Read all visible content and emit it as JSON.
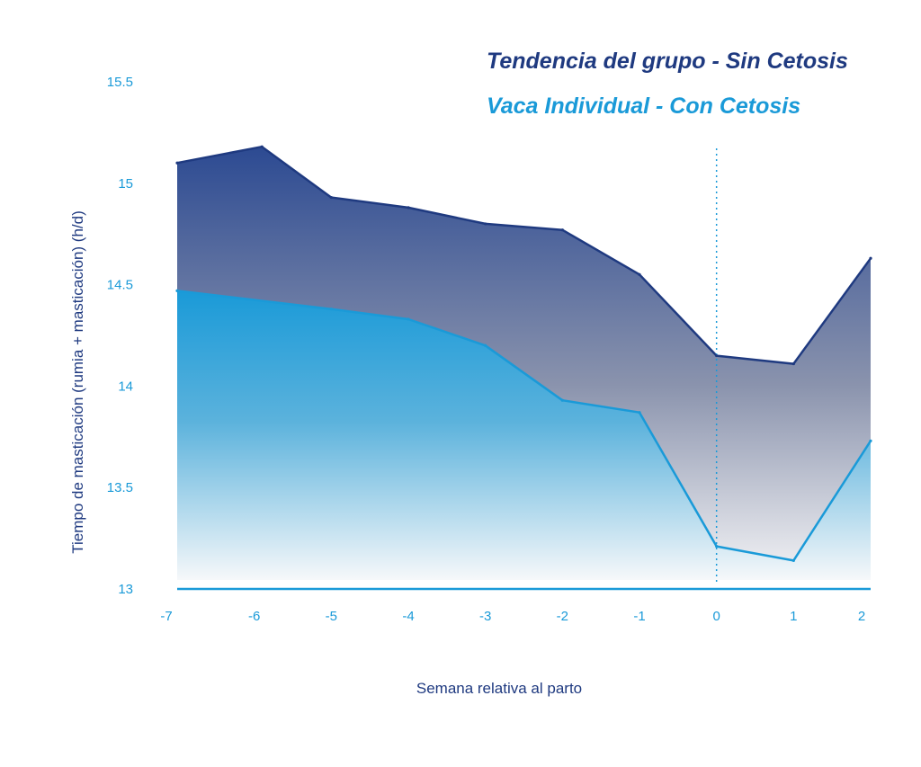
{
  "colors": {
    "group": "#1f3a80",
    "individual": "#1a9ad8",
    "axis": "#1a9ad8",
    "title_text": "#1f3a80"
  },
  "chart_data": {
    "type": "area",
    "xlabel": "Semana relativa al parto",
    "ylabel": "Tiempo de masticación (rumia + masticación) (h/d)",
    "ylim": [
      13,
      15.5
    ],
    "xlim": [
      -7,
      2
    ],
    "x_ticks": [
      "-7",
      "-6",
      "-5",
      "-4",
      "-3",
      "-2",
      "-1",
      "0",
      "1",
      "2"
    ],
    "y_ticks": [
      "13",
      "13.5",
      "14",
      "14.5",
      "15",
      "15.5"
    ],
    "reference_line_x": 0,
    "legend_position": "top-right",
    "series": [
      {
        "name": "Tendencia del grupo - Sin Cetosis",
        "x": [
          -7,
          -5.9,
          -5,
          -4,
          -3,
          -2,
          -1,
          0,
          1,
          2
        ],
        "y": [
          15.1,
          15.18,
          14.93,
          14.88,
          14.8,
          14.77,
          14.55,
          14.15,
          14.11,
          14.63
        ]
      },
      {
        "name": "Vaca Individual - Con  Cetosis",
        "x": [
          -7,
          -5,
          -4,
          -3,
          -2,
          -1,
          0,
          1,
          2
        ],
        "y": [
          14.47,
          14.38,
          14.33,
          14.2,
          13.93,
          13.87,
          13.21,
          13.14,
          13.73
        ]
      }
    ]
  }
}
